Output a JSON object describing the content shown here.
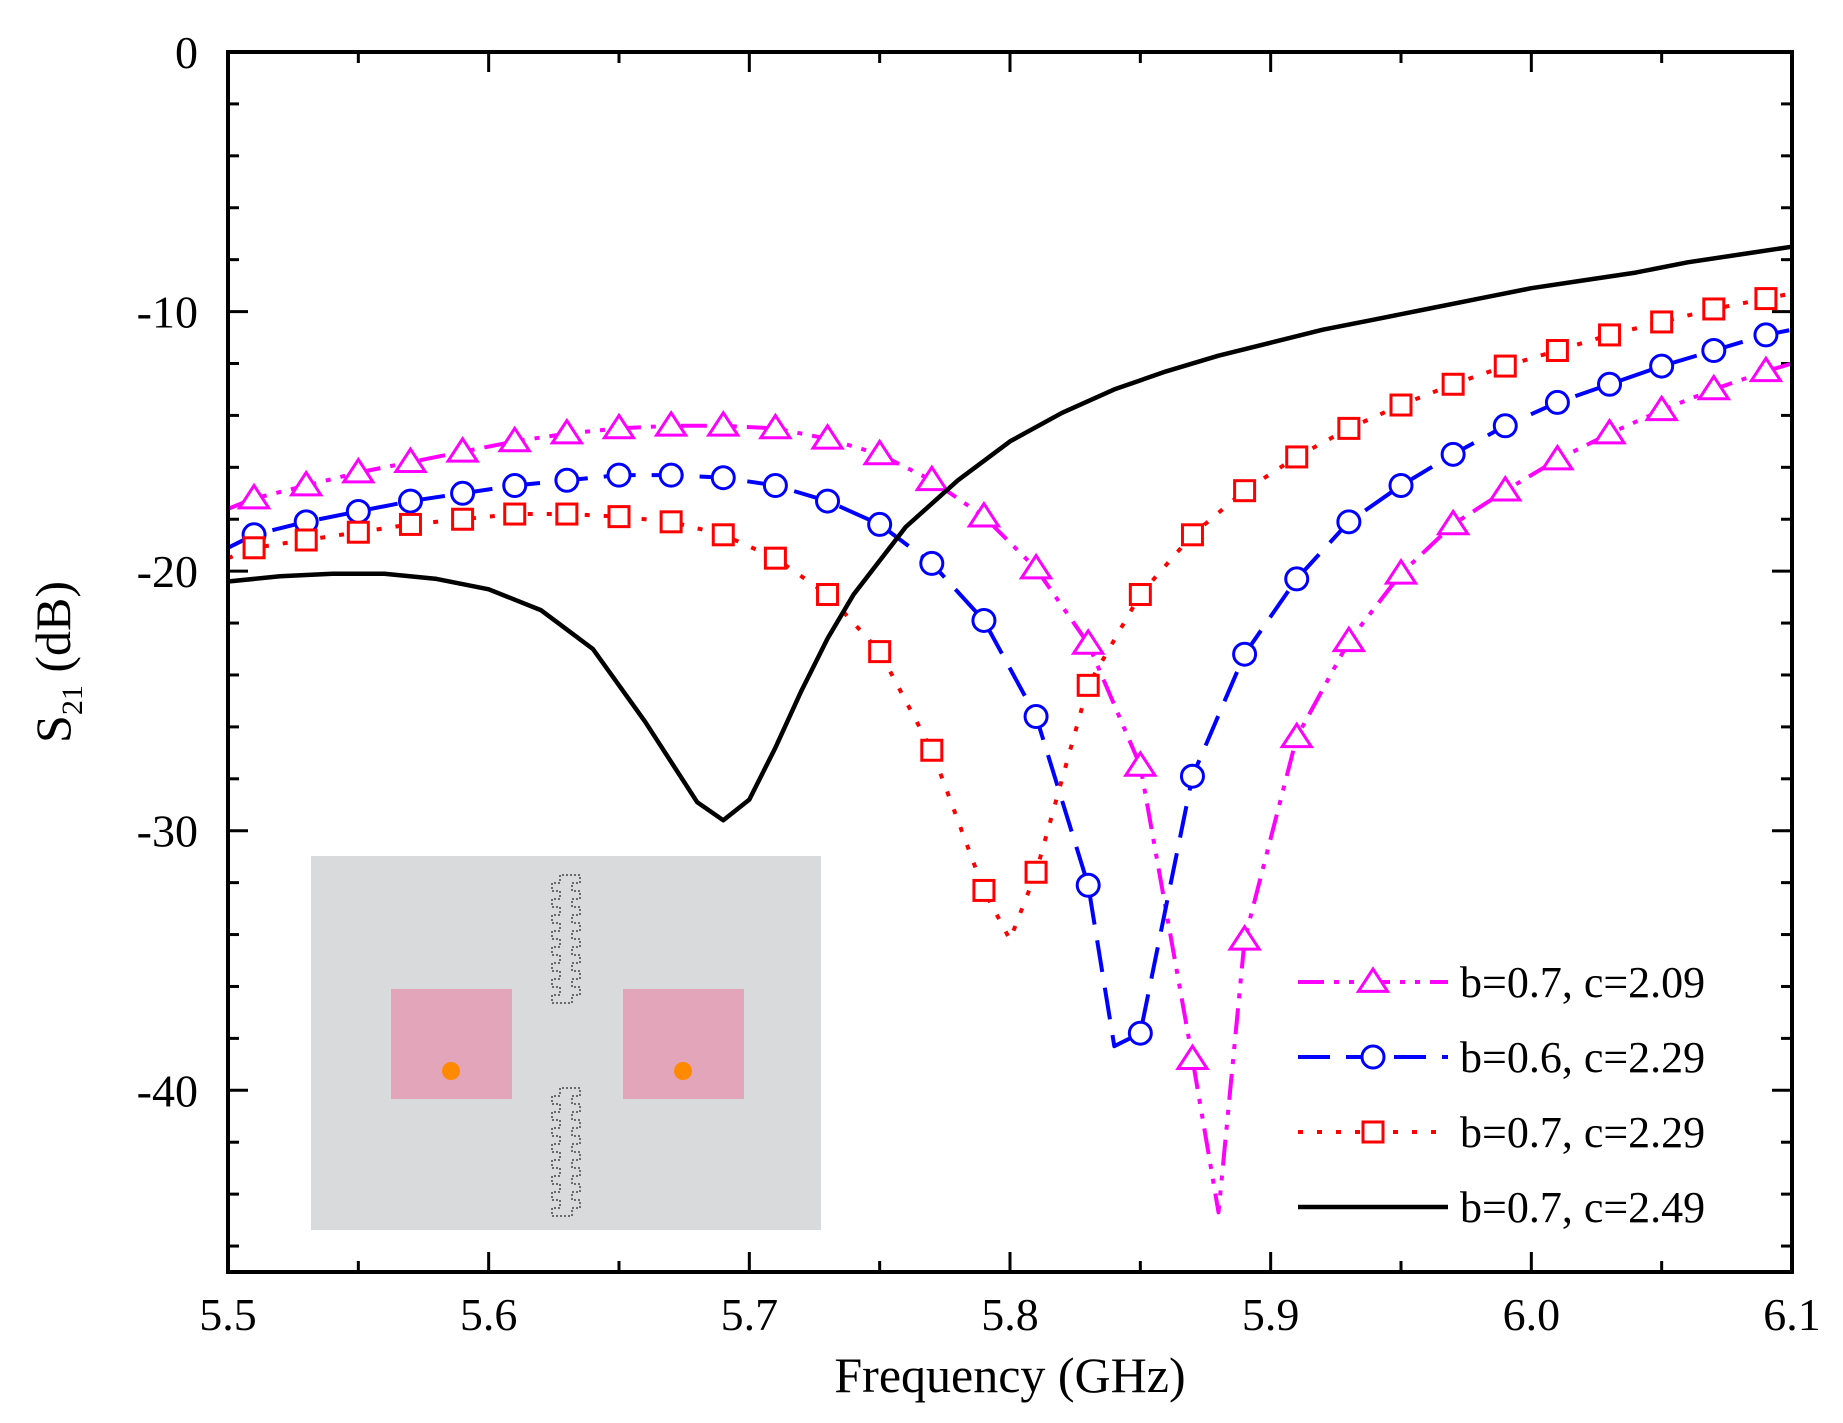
{
  "chart_data": {
    "type": "line",
    "title": "",
    "xlabel": "Frequency (GHz)",
    "ylabel": {
      "base": "S",
      "sub": "21",
      "rest": " (dB)"
    },
    "xlim": [
      5.5,
      6.1
    ],
    "ylim": [
      -47,
      0
    ],
    "xticks": [
      5.5,
      5.6,
      5.7,
      5.8,
      5.9,
      6.0,
      6.1
    ],
    "xtick_labels": [
      "5.5",
      "5.6",
      "5.7",
      "5.8",
      "5.9",
      "6.0",
      "6.1"
    ],
    "yticks": [
      0,
      -10,
      -20,
      -30,
      -40
    ],
    "ytick_labels": [
      "0",
      "-10",
      "-20",
      "-30",
      "-40"
    ],
    "legend_position": "bottom-right",
    "series": [
      {
        "name": "b=0.7, c=2.09",
        "color": "#ff00ff",
        "marker": "triangle",
        "dash": "dashdotdot",
        "x": [
          5.5,
          5.51,
          5.53,
          5.55,
          5.57,
          5.59,
          5.61,
          5.63,
          5.65,
          5.67,
          5.69,
          5.71,
          5.73,
          5.75,
          5.77,
          5.79,
          5.81,
          5.83,
          5.85,
          5.87,
          5.88,
          5.89,
          5.91,
          5.93,
          5.95,
          5.97,
          5.99,
          6.01,
          6.03,
          6.05,
          6.07,
          6.09,
          6.1
        ],
        "y": [
          -17.6,
          -17.2,
          -16.7,
          -16.2,
          -15.8,
          -15.4,
          -15.0,
          -14.7,
          -14.5,
          -14.4,
          -14.4,
          -14.5,
          -14.9,
          -15.5,
          -16.5,
          -17.9,
          -19.9,
          -22.8,
          -27.5,
          -38.8,
          -44.7,
          -34.2,
          -26.4,
          -22.7,
          -20.1,
          -18.2,
          -16.9,
          -15.7,
          -14.7,
          -13.8,
          -13.0,
          -12.3,
          -12.0
        ],
        "marker_x": [
          5.51,
          5.53,
          5.55,
          5.57,
          5.59,
          5.61,
          5.63,
          5.65,
          5.67,
          5.69,
          5.71,
          5.73,
          5.75,
          5.77,
          5.79,
          5.81,
          5.83,
          5.85,
          5.87,
          5.89,
          5.91,
          5.93,
          5.95,
          5.97,
          5.99,
          6.01,
          6.03,
          6.05,
          6.07,
          6.09
        ],
        "marker_y": [
          -17.2,
          -16.7,
          -16.2,
          -15.8,
          -15.4,
          -15.0,
          -14.7,
          -14.5,
          -14.4,
          -14.4,
          -14.5,
          -14.9,
          -15.5,
          -16.5,
          -17.9,
          -19.9,
          -22.8,
          -27.5,
          -38.8,
          -34.2,
          -26.4,
          -22.7,
          -20.1,
          -18.2,
          -16.9,
          -15.7,
          -14.7,
          -13.8,
          -13.0,
          -12.3
        ]
      },
      {
        "name": "b=0.6, c=2.29",
        "color": "#0000ff",
        "marker": "circle",
        "dash": "dash",
        "x": [
          5.5,
          5.51,
          5.53,
          5.55,
          5.57,
          5.59,
          5.61,
          5.63,
          5.65,
          5.67,
          5.69,
          5.71,
          5.73,
          5.75,
          5.77,
          5.79,
          5.81,
          5.83,
          5.84,
          5.85,
          5.87,
          5.89,
          5.91,
          5.93,
          5.95,
          5.97,
          5.99,
          6.01,
          6.03,
          6.05,
          6.07,
          6.09,
          6.1
        ],
        "y": [
          -19.1,
          -18.6,
          -18.1,
          -17.7,
          -17.3,
          -17.0,
          -16.7,
          -16.5,
          -16.3,
          -16.3,
          -16.4,
          -16.7,
          -17.3,
          -18.2,
          -19.7,
          -21.9,
          -25.6,
          -32.1,
          -38.3,
          -37.8,
          -27.9,
          -23.2,
          -20.3,
          -18.1,
          -16.7,
          -15.5,
          -14.4,
          -13.5,
          -12.8,
          -12.1,
          -11.5,
          -10.9,
          -10.7
        ],
        "marker_x": [
          5.51,
          5.53,
          5.55,
          5.57,
          5.59,
          5.61,
          5.63,
          5.65,
          5.67,
          5.69,
          5.71,
          5.73,
          5.75,
          5.77,
          5.79,
          5.81,
          5.83,
          5.85,
          5.87,
          5.89,
          5.91,
          5.93,
          5.95,
          5.97,
          5.99,
          6.01,
          6.03,
          6.05,
          6.07,
          6.09
        ],
        "marker_y": [
          -18.6,
          -18.1,
          -17.7,
          -17.3,
          -17.0,
          -16.7,
          -16.5,
          -16.3,
          -16.3,
          -16.4,
          -16.7,
          -17.3,
          -18.2,
          -19.7,
          -21.9,
          -25.6,
          -32.1,
          -37.8,
          -27.9,
          -23.2,
          -20.3,
          -18.1,
          -16.7,
          -15.5,
          -14.4,
          -13.5,
          -12.8,
          -12.1,
          -11.5,
          -10.9
        ]
      },
      {
        "name": "b=0.7, c=2.29",
        "color": "#ff0000",
        "marker": "square",
        "dash": "dot",
        "x": [
          5.5,
          5.51,
          5.53,
          5.55,
          5.57,
          5.59,
          5.61,
          5.63,
          5.65,
          5.67,
          5.69,
          5.71,
          5.73,
          5.75,
          5.77,
          5.79,
          5.8,
          5.81,
          5.83,
          5.85,
          5.87,
          5.89,
          5.91,
          5.93,
          5.95,
          5.97,
          5.99,
          6.01,
          6.03,
          6.05,
          6.07,
          6.09,
          6.1
        ],
        "y": [
          -19.5,
          -19.1,
          -18.8,
          -18.5,
          -18.2,
          -18.0,
          -17.8,
          -17.8,
          -17.9,
          -18.1,
          -18.6,
          -19.5,
          -20.9,
          -23.1,
          -26.9,
          -32.3,
          -34.2,
          -31.6,
          -24.4,
          -20.9,
          -18.6,
          -16.9,
          -15.6,
          -14.5,
          -13.6,
          -12.8,
          -12.1,
          -11.5,
          -10.9,
          -10.4,
          -9.9,
          -9.5,
          -9.3
        ],
        "marker_x": [
          5.51,
          5.53,
          5.55,
          5.57,
          5.59,
          5.61,
          5.63,
          5.65,
          5.67,
          5.69,
          5.71,
          5.73,
          5.75,
          5.77,
          5.79,
          5.81,
          5.83,
          5.85,
          5.87,
          5.89,
          5.91,
          5.93,
          5.95,
          5.97,
          5.99,
          6.01,
          6.03,
          6.05,
          6.07,
          6.09
        ],
        "marker_y": [
          -19.1,
          -18.8,
          -18.5,
          -18.2,
          -18.0,
          -17.8,
          -17.8,
          -17.9,
          -18.1,
          -18.6,
          -19.5,
          -20.9,
          -23.1,
          -26.9,
          -32.3,
          -31.6,
          -24.4,
          -20.9,
          -18.6,
          -16.9,
          -15.6,
          -14.5,
          -13.6,
          -12.8,
          -12.1,
          -11.5,
          -10.9,
          -10.4,
          -9.9,
          -9.5
        ]
      },
      {
        "name": "b=0.7, c=2.49",
        "color": "#000000",
        "marker": "none",
        "dash": "solid",
        "x": [
          5.5,
          5.52,
          5.54,
          5.56,
          5.58,
          5.6,
          5.62,
          5.64,
          5.66,
          5.68,
          5.69,
          5.7,
          5.71,
          5.72,
          5.73,
          5.74,
          5.76,
          5.78,
          5.8,
          5.82,
          5.84,
          5.86,
          5.88,
          5.9,
          5.92,
          5.94,
          5.96,
          5.98,
          6.0,
          6.02,
          6.04,
          6.06,
          6.08,
          6.1
        ],
        "y": [
          -20.4,
          -20.2,
          -20.1,
          -20.1,
          -20.3,
          -20.7,
          -21.5,
          -23.0,
          -25.8,
          -28.9,
          -29.6,
          -28.8,
          -26.8,
          -24.6,
          -22.6,
          -20.9,
          -18.3,
          -16.5,
          -15.0,
          -13.9,
          -13.0,
          -12.3,
          -11.7,
          -11.2,
          -10.7,
          -10.3,
          -9.9,
          -9.5,
          -9.1,
          -8.8,
          -8.5,
          -8.1,
          -7.8,
          -7.5
        ]
      }
    ]
  }
}
